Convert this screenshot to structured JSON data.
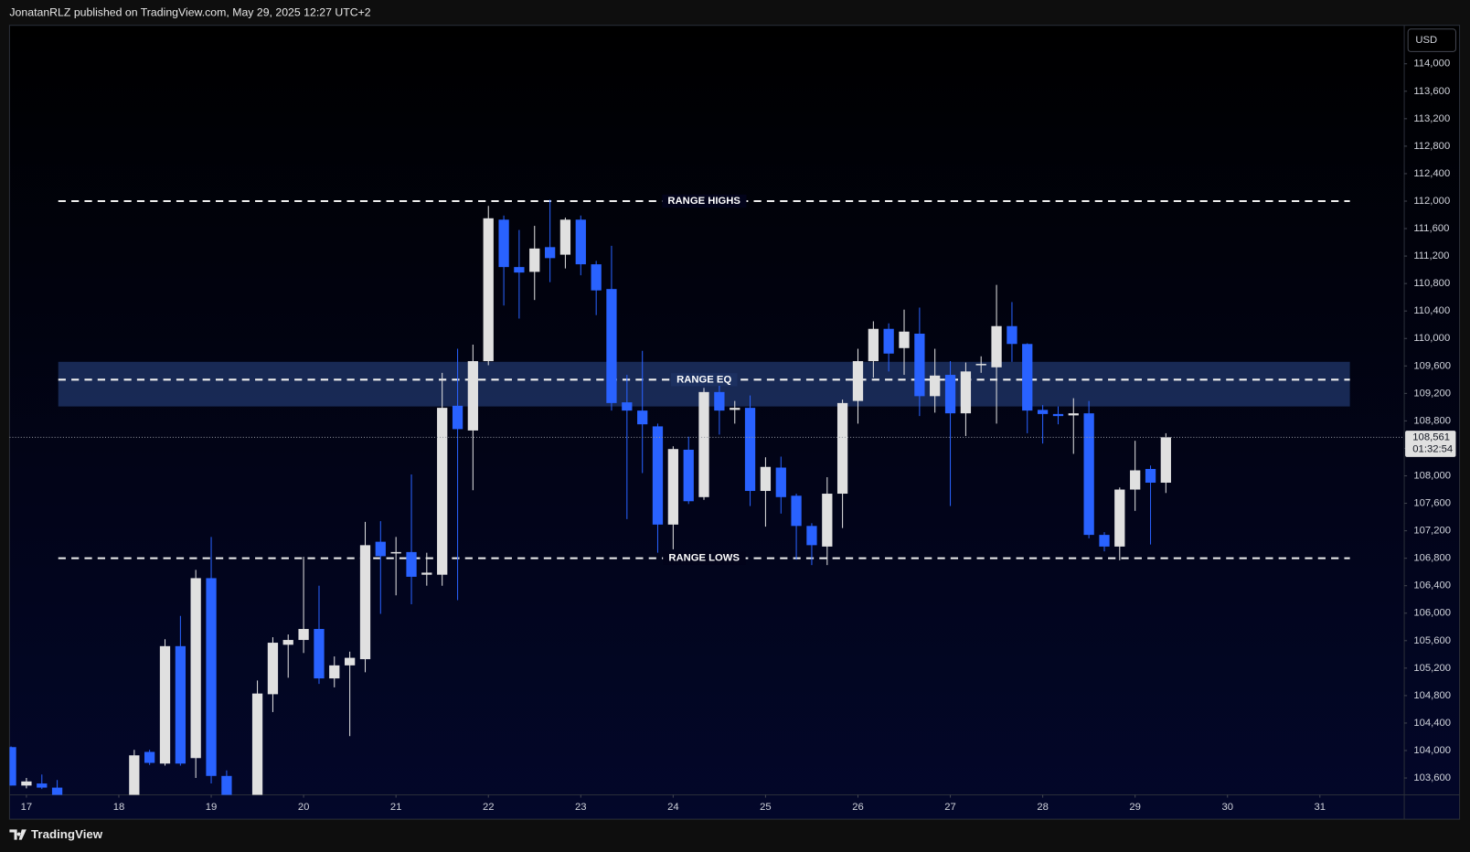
{
  "header": {
    "publisher": "JonatanRLZ published on TradingView.com, May 29, 2025 12:27 UTC+2"
  },
  "footer": {
    "brand": "TradingView"
  },
  "chart_data": {
    "type": "candlestick",
    "currency": "USD",
    "x": [
      16.833,
      17,
      17.167,
      17.333,
      18.167,
      18.333,
      18.5,
      18.667,
      18.833,
      19,
      19.167,
      19.5,
      19.667,
      19.833,
      20,
      20.167,
      20.333,
      20.5,
      20.667,
      20.833,
      21,
      21.167,
      21.333,
      21.5,
      21.667,
      21.833,
      22,
      22.167,
      22.333,
      22.5,
      22.667,
      22.833,
      23,
      23.167,
      23.333,
      23.5,
      23.667,
      23.833,
      24,
      24.167,
      24.333,
      24.5,
      24.667,
      24.833,
      25,
      25.167,
      25.333,
      25.5,
      25.667,
      25.833,
      26,
      26.167,
      26.333,
      26.5,
      26.667,
      26.833,
      27,
      27.167,
      27.333,
      27.5,
      27.667,
      27.833,
      28,
      28.167,
      28.333,
      28.5,
      28.667,
      28.833,
      29,
      29.167,
      29.333
    ],
    "open": [
      104050,
      103490,
      103520,
      103460,
      103300,
      103980,
      103810,
      105520,
      103890,
      106510,
      103630,
      103300,
      104820,
      105540,
      105610,
      105770,
      105050,
      105240,
      105330,
      107040,
      106880,
      106890,
      106560,
      106560,
      109020,
      108660,
      109670,
      111730,
      111040,
      110970,
      111330,
      111220,
      111730,
      111080,
      110720,
      109070,
      108950,
      108720,
      107290,
      108380,
      107690,
      109220,
      108960,
      108990,
      107780,
      108120,
      107710,
      107270,
      106970,
      107740,
      109090,
      109670,
      110140,
      109860,
      110070,
      109160,
      109470,
      108910,
      109610,
      109580,
      110180,
      109920,
      108960,
      108900,
      108880,
      108910,
      107140,
      106970,
      107800,
      108100,
      107900
    ],
    "high": [
      104060,
      103600,
      103650,
      103570,
      104010,
      104010,
      105620,
      105960,
      106630,
      107110,
      103710,
      105020,
      105650,
      105690,
      106820,
      106400,
      105370,
      105440,
      107330,
      107340,
      107110,
      108020,
      106880,
      109500,
      109850,
      109910,
      111930,
      111790,
      111580,
      111640,
      112020,
      111760,
      111790,
      111130,
      111350,
      109470,
      109820,
      108760,
      108430,
      108570,
      109280,
      109310,
      109090,
      109170,
      108270,
      108280,
      107740,
      107310,
      107980,
      109110,
      109850,
      110250,
      110220,
      110420,
      110450,
      109850,
      109670,
      109650,
      109740,
      110780,
      110530,
      109930,
      109030,
      109010,
      109130,
      109090,
      107180,
      107830,
      108510,
      108150,
      108620
    ],
    "low": [
      103490,
      103450,
      103440,
      103300,
      103300,
      103790,
      103780,
      103780,
      103600,
      103520,
      103300,
      103300,
      104560,
      105060,
      105420,
      104970,
      104920,
      104210,
      105140,
      105990,
      106260,
      106130,
      106400,
      106400,
      106190,
      107790,
      109610,
      110480,
      110290,
      110560,
      110820,
      111020,
      110920,
      110340,
      108950,
      107370,
      108040,
      106880,
      106930,
      107590,
      107650,
      108600,
      108760,
      107560,
      107260,
      107450,
      106780,
      106700,
      106700,
      107240,
      108760,
      109430,
      109520,
      109470,
      108870,
      108920,
      107560,
      108580,
      109500,
      108760,
      109660,
      108620,
      108470,
      108750,
      108320,
      107090,
      106900,
      106770,
      107490,
      107000,
      107750
    ],
    "close": [
      103490,
      103550,
      103460,
      103300,
      103930,
      103820,
      105520,
      103810,
      106510,
      103630,
      103300,
      104830,
      105570,
      105610,
      105770,
      105050,
      105240,
      105350,
      106990,
      106830,
      106890,
      106530,
      106590,
      108990,
      108680,
      109670,
      111750,
      111040,
      110960,
      111310,
      111170,
      111730,
      111080,
      110700,
      109060,
      108950,
      108750,
      107290,
      108390,
      107630,
      109220,
      108950,
      108990,
      107780,
      108130,
      107690,
      107270,
      106990,
      107740,
      109060,
      109670,
      110140,
      109780,
      110100,
      109160,
      109460,
      108910,
      109520,
      109630,
      110180,
      109920,
      108950,
      108900,
      108870,
      108910,
      107140,
      106970,
      107800,
      108080,
      107900,
      108561
    ],
    "up_color": "#e0e0e0",
    "down_color": "#2962ff",
    "xlim": [
      16.817,
      31.913
    ],
    "xticks": [
      17,
      18,
      19,
      20,
      21,
      22,
      23,
      24,
      25,
      26,
      27,
      28,
      29,
      30,
      31
    ],
    "ylim": [
      103355,
      114560
    ],
    "yticks": [
      {
        "value": 103600,
        "label": "103,600"
      },
      {
        "value": 104000,
        "label": "104,000"
      },
      {
        "value": 104400,
        "label": "104,400"
      },
      {
        "value": 104800,
        "label": "104,800"
      },
      {
        "value": 105200,
        "label": "105,200"
      },
      {
        "value": 105600,
        "label": "105,600"
      },
      {
        "value": 106000,
        "label": "106,000"
      },
      {
        "value": 106400,
        "label": "106,400"
      },
      {
        "value": 106800,
        "label": "106,800"
      },
      {
        "value": 107200,
        "label": "107,200"
      },
      {
        "value": 107600,
        "label": "107,600"
      },
      {
        "value": 108000,
        "label": "108,000"
      },
      {
        "value": 108400,
        "label": "108,400"
      },
      {
        "value": 108800,
        "label": "108,800"
      },
      {
        "value": 109200,
        "label": "109,200"
      },
      {
        "value": 109600,
        "label": "109,600"
      },
      {
        "value": 110000,
        "label": "110,000"
      },
      {
        "value": 110400,
        "label": "110,400"
      },
      {
        "value": 110800,
        "label": "110,800"
      },
      {
        "value": 111200,
        "label": "111,200"
      },
      {
        "value": 111600,
        "label": "111,600"
      },
      {
        "value": 112000,
        "label": "112,000"
      },
      {
        "value": 112400,
        "label": "112,400"
      },
      {
        "value": 112800,
        "label": "112,800"
      },
      {
        "value": 113200,
        "label": "113,200"
      },
      {
        "value": 113600,
        "label": "113,600"
      },
      {
        "value": 114000,
        "label": "114,000"
      }
    ],
    "grid": false,
    "annotations": [
      {
        "label": "RANGE HIGHS",
        "value": 112000
      },
      {
        "label": "RANGE EQ",
        "value": 109400
      },
      {
        "label": "RANGE LOWS",
        "value": 106800
      }
    ],
    "zone": {
      "top": 109660,
      "bottom": 109010,
      "color": "#1c3060"
    },
    "last_price_label": "108,561",
    "countdown": "01:32:54"
  }
}
